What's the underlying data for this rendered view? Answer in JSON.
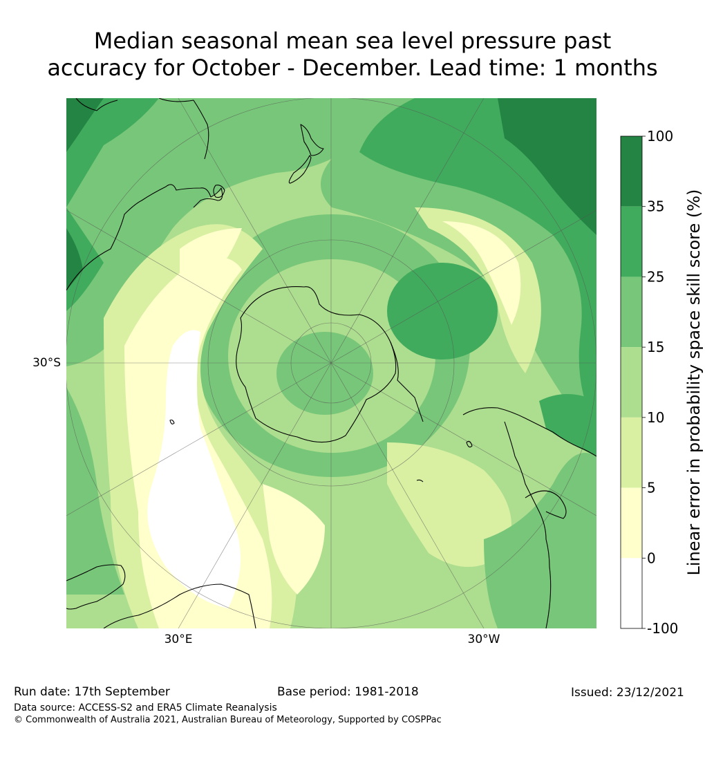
{
  "title": {
    "line1": "Median seasonal mean sea level pressure past",
    "line2": "accuracy for October - December. Lead time: 1 months"
  },
  "map": {
    "projection": "south-polar-stereographic",
    "lat_labels": [
      "30°S"
    ],
    "lon_labels": [
      "30°E",
      "30°W"
    ],
    "colors": {
      "coastline": "#000000",
      "graticule": "#555555"
    }
  },
  "colorbar": {
    "label": "Linear error in probability space skill score (%)",
    "ticks": [
      "100",
      "35",
      "25",
      "15",
      "10",
      "5",
      "0",
      "-100"
    ],
    "bins": [
      {
        "from": 35,
        "to": 100,
        "color": "#238443"
      },
      {
        "from": 25,
        "to": 35,
        "color": "#41ab5d"
      },
      {
        "from": 15,
        "to": 25,
        "color": "#78c679"
      },
      {
        "from": 10,
        "to": 15,
        "color": "#addd8e"
      },
      {
        "from": 5,
        "to": 10,
        "color": "#d9f0a3"
      },
      {
        "from": 0,
        "to": 5,
        "color": "#ffffcc"
      },
      {
        "from": -100,
        "to": 0,
        "color": "#ffffff"
      }
    ]
  },
  "footer": {
    "run_date": "Run date: 17th September",
    "base_period": "Base period: 1981-2018",
    "issued": "Issued: 23/12/2021",
    "data_source": "Data source: ACCESS-S2 and ERA5 Climate Reanalysis",
    "copyright": "© Commonwealth of Australia 2021, Australian Bureau of Meteorology, Supported by COSPPac"
  }
}
